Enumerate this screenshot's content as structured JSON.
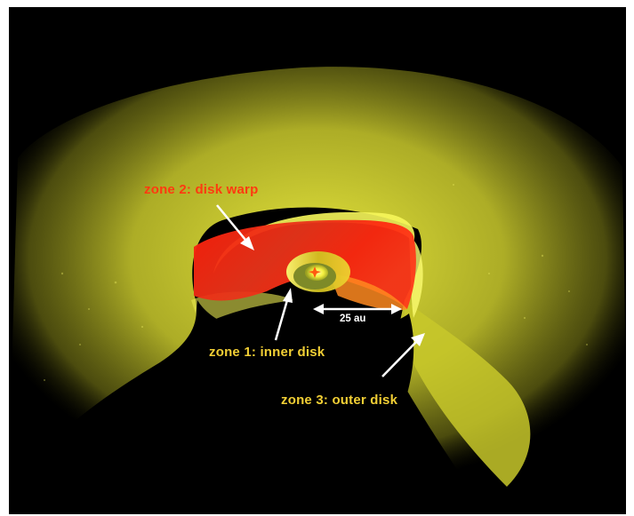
{
  "labels": {
    "zone1": "zone 1: inner disk",
    "zone2": "zone 2: disk warp",
    "zone3": "zone 3: outer disk"
  },
  "scale_bar": {
    "text": "25 au"
  },
  "colors": {
    "background": "#000000",
    "outer_disk": "#e6e62a",
    "warp": "#ff2a10",
    "zone1_label": "#f2cf35",
    "zone2_label": "#ff3a10",
    "zone3_label": "#f2cf35",
    "arrows": "#ffffff"
  }
}
